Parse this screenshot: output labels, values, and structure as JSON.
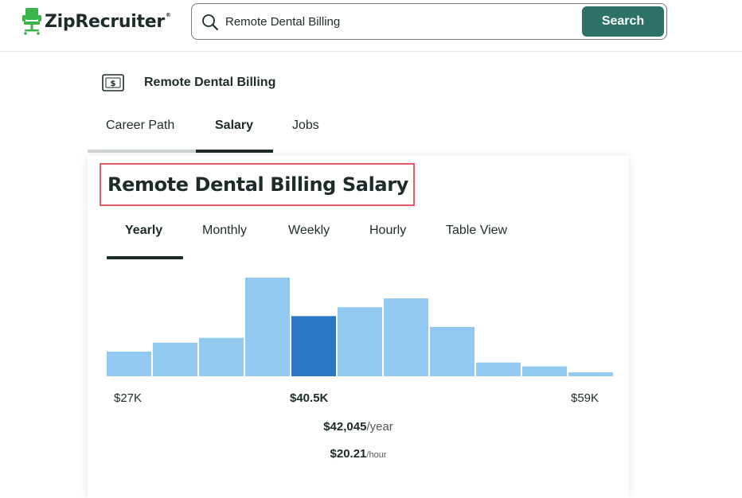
{
  "brand": {
    "name": "ZipRecruiter",
    "reg": "®",
    "logo_color": "#3bb54a"
  },
  "search": {
    "value": "Remote Dental Billing",
    "button_label": "Search",
    "button_color": "#2c7266"
  },
  "job": {
    "title": "Remote Dental Billing",
    "icon": "money-icon"
  },
  "top_tabs": [
    {
      "label": "Career Path",
      "active": false
    },
    {
      "label": "Salary",
      "active": true
    },
    {
      "label": "Jobs",
      "active": false
    }
  ],
  "card": {
    "heading": "Remote Dental Billing Salary",
    "period_tabs": [
      {
        "label": "Yearly",
        "active": true
      },
      {
        "label": "Monthly",
        "active": false
      },
      {
        "label": "Weekly",
        "active": false
      },
      {
        "label": "Hourly",
        "active": false
      },
      {
        "label": "Table View",
        "active": false
      }
    ],
    "range_low": "$27K",
    "range_mid": "$40.5K",
    "range_high": "$59K",
    "annual_salary": "$42,045",
    "annual_unit": "/year",
    "hourly_salary": "$20.21",
    "hourly_unit": "/hour"
  },
  "chart_data": {
    "type": "bar",
    "values": [
      25,
      34,
      39,
      100,
      61,
      70,
      79,
      50,
      14,
      10,
      4
    ],
    "highlight_index": 4,
    "bar_color": "#92c9f1",
    "highlight_color": "#2a77c4"
  }
}
